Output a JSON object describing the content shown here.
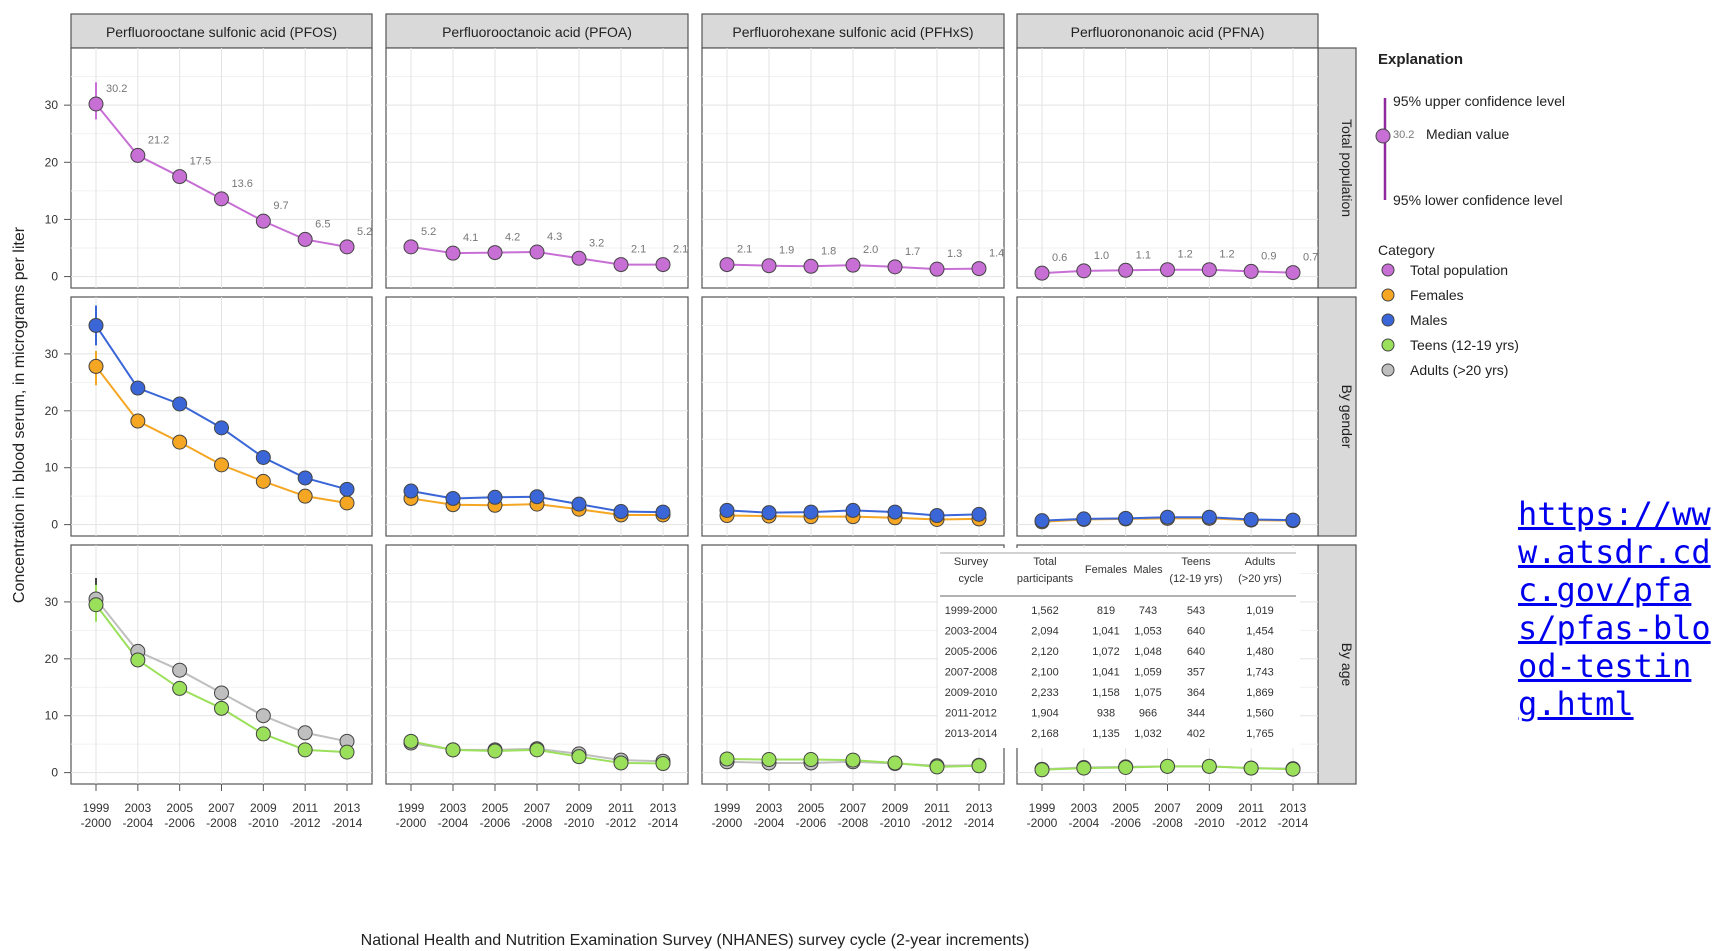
{
  "chart_data": {
    "type": "line",
    "xlabel": "National Health and Nutrition Examination Survey (NHANES) survey cycle (2-year increments)",
    "ylabel": "Concentration in blood serum, in micrograms per liter",
    "ylim": [
      -2,
      40
    ],
    "yticks": [
      "0",
      "10",
      "20",
      "30"
    ],
    "x_top": [
      "1999",
      "2003",
      "2005",
      "2007",
      "2009",
      "2011",
      "2013"
    ],
    "x_bottom": [
      "-2000",
      "-2004",
      "-2006",
      "-2008",
      "-2010",
      "-2012",
      "-2014"
    ],
    "facet_cols": [
      "Perfluorooctane sulfonic acid (PFOS)",
      "Perfluorooctanoic acid (PFOA)",
      "Perfluorohexane sulfonic acid (PFHxS)",
      "Perfluorononanoic acid (PFNA)"
    ],
    "facet_rows": [
      "Total population",
      "By gender",
      "By age"
    ],
    "grid": true,
    "colors": {
      "total": "#c86fd6",
      "females": "#f5a623",
      "males": "#3a66d8",
      "teens": "#9be05a",
      "adults": "#bfbfbf"
    },
    "panels": {
      "total": [
        {
          "series": [
            {
              "key": "total",
              "values": [
                30.2,
                21.2,
                17.5,
                13.6,
                9.7,
                6.5,
                5.2
              ],
              "labels": [
                "30.2",
                "21.2",
                "17.5",
                "13.6",
                "9.7",
                "6.5",
                "5.2"
              ],
              "ci": [
                34,
                27.5
              ]
            }
          ]
        },
        {
          "series": [
            {
              "key": "total",
              "values": [
                5.2,
                4.1,
                4.2,
                4.3,
                3.2,
                2.1,
                2.1
              ],
              "labels": [
                "5.2",
                "4.1",
                "4.2",
                "4.3",
                "3.2",
                "2.1",
                "2.1"
              ]
            }
          ]
        },
        {
          "series": [
            {
              "key": "total",
              "values": [
                2.1,
                1.9,
                1.8,
                2.0,
                1.7,
                1.3,
                1.4
              ],
              "labels": [
                "2.1",
                "1.9",
                "1.8",
                "2.0",
                "1.7",
                "1.3",
                "1.4"
              ]
            }
          ]
        },
        {
          "series": [
            {
              "key": "total",
              "values": [
                0.6,
                1.0,
                1.1,
                1.2,
                1.2,
                0.9,
                0.7
              ],
              "labels": [
                "0.6",
                "1.0",
                "1.1",
                "1.2",
                "1.2",
                "0.9",
                "0.7"
              ]
            }
          ]
        }
      ],
      "gender": [
        {
          "series": [
            {
              "key": "females",
              "values": [
                27.8,
                18.2,
                14.5,
                10.5,
                7.6,
                5.0,
                3.8
              ],
              "ci": [
                30.5,
                24.5
              ]
            },
            {
              "key": "males",
              "values": [
                35.0,
                24.0,
                21.2,
                17.0,
                11.8,
                8.2,
                6.2
              ],
              "ci": [
                38.5,
                31.5
              ]
            }
          ]
        },
        {
          "series": [
            {
              "key": "females",
              "values": [
                4.6,
                3.5,
                3.4,
                3.6,
                2.7,
                1.7,
                1.7
              ]
            },
            {
              "key": "males",
              "values": [
                5.9,
                4.6,
                4.8,
                4.9,
                3.6,
                2.3,
                2.2
              ]
            }
          ]
        },
        {
          "series": [
            {
              "key": "females",
              "values": [
                1.6,
                1.5,
                1.4,
                1.4,
                1.2,
                0.9,
                1.0
              ]
            },
            {
              "key": "males",
              "values": [
                2.5,
                2.1,
                2.2,
                2.5,
                2.2,
                1.6,
                1.8
              ]
            }
          ]
        },
        {
          "series": [
            {
              "key": "females",
              "values": [
                0.5,
                0.9,
                1.0,
                1.1,
                1.1,
                0.8,
                0.7
              ]
            },
            {
              "key": "males",
              "values": [
                0.7,
                1.0,
                1.1,
                1.3,
                1.3,
                0.9,
                0.8
              ]
            }
          ]
        }
      ],
      "age": [
        {
          "series": [
            {
              "key": "adults",
              "values": [
                30.5,
                21.3,
                18.0,
                14.0,
                10.0,
                7.0,
                5.5
              ],
              "ci": [
                34.2,
                27.2
              ]
            },
            {
              "key": "teens",
              "values": [
                29.5,
                19.8,
                14.8,
                11.3,
                6.8,
                4.0,
                3.6
              ],
              "ci": [
                33,
                26.5
              ]
            }
          ]
        },
        {
          "series": [
            {
              "key": "adults",
              "values": [
                5.2,
                4.0,
                4.0,
                4.2,
                3.3,
                2.2,
                2.0
              ]
            },
            {
              "key": "teens",
              "values": [
                5.5,
                4.0,
                3.8,
                4.0,
                2.8,
                1.7,
                1.6
              ]
            }
          ]
        },
        {
          "series": [
            {
              "key": "adults",
              "values": [
                1.9,
                1.7,
                1.7,
                1.9,
                1.6,
                1.2,
                1.3
              ]
            },
            {
              "key": "teens",
              "values": [
                2.4,
                2.3,
                2.3,
                2.2,
                1.7,
                1.0,
                1.2
              ]
            }
          ]
        },
        {
          "series": [
            {
              "key": "adults",
              "values": [
                0.6,
                0.9,
                1.0,
                1.1,
                1.1,
                0.8,
                0.7
              ]
            },
            {
              "key": "teens",
              "values": [
                0.5,
                0.8,
                0.9,
                1.1,
                1.1,
                0.8,
                0.6
              ]
            }
          ]
        }
      ]
    },
    "legend": {
      "title": "Explanation",
      "upper": "95% upper confidence level",
      "sample_value": "30.2",
      "median": "Median value",
      "lower": "95% lower confidence level",
      "category_title": "Category",
      "items": [
        {
          "key": "total",
          "label": "Total population"
        },
        {
          "key": "females",
          "label": "Females"
        },
        {
          "key": "males",
          "label": "Males"
        },
        {
          "key": "teens",
          "label": "Teens (12-19 yrs)"
        },
        {
          "key": "adults",
          "label": "Adults (>20 yrs)"
        }
      ]
    },
    "table": {
      "headers": [
        [
          "Survey",
          "cycle"
        ],
        [
          "Total",
          "participants"
        ],
        [
          "Females"
        ],
        [
          "Males"
        ],
        [
          "Teens",
          "(12-19 yrs)"
        ],
        [
          "Adults",
          "(>20 yrs)"
        ]
      ],
      "rows": [
        [
          "1999-2000",
          "1,562",
          "819",
          "743",
          "543",
          "1,019"
        ],
        [
          "2003-2004",
          "2,094",
          "1,041",
          "1,053",
          "640",
          "1,454"
        ],
        [
          "2005-2006",
          "2,120",
          "1,072",
          "1,048",
          "640",
          "1,480"
        ],
        [
          "2007-2008",
          "2,100",
          "1,041",
          "1,059",
          "357",
          "1,743"
        ],
        [
          "2009-2010",
          "2,233",
          "1,158",
          "1,075",
          "364",
          "1,869"
        ],
        [
          "2011-2012",
          "1,904",
          "938",
          "966",
          "344",
          "1,560"
        ],
        [
          "2013-2014",
          "2,168",
          "1,135",
          "1,032",
          "402",
          "1,765"
        ]
      ]
    }
  },
  "link_text": "https://www.atsdr.cdc.gov/pfas/pfas-blood-testing.html"
}
